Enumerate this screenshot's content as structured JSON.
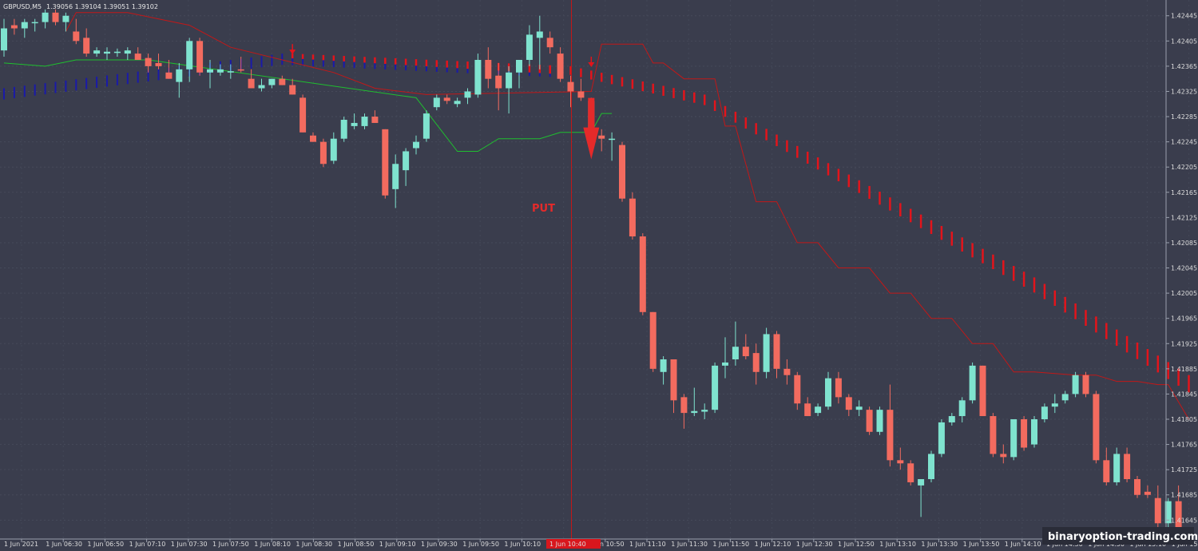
{
  "header": {
    "symbol": "GBPUSD,M5",
    "quotes": "1.39056 1.39104 1.39051 1.39102"
  },
  "signal": {
    "label": "PUT",
    "time_label": "1 Jun 10:40"
  },
  "watermark": "binaryoption-trading.com",
  "colors": {
    "background": "#3a3d4d",
    "bull": "#7fe3cf",
    "bear": "#f36b5f",
    "trail_green": "#1fbf2f",
    "trail_red": "#c21818",
    "dots_blue": "#1a1aa8",
    "dots_red": "#e3141b",
    "signal_line": "#c21818",
    "axis": "#9aa0ad"
  },
  "chart_data": {
    "type": "candlestick",
    "symbol": "GBPUSD",
    "timeframe": "M5",
    "ylim": [
      1.41615,
      1.4247
    ],
    "y_ticks": [
      "1.42445",
      "1.42405",
      "1.42365",
      "1.42325",
      "1.42285",
      "1.42245",
      "1.42205",
      "1.42165",
      "1.42125",
      "1.42085",
      "1.42045",
      "1.42005",
      "1.41965",
      "1.41925",
      "1.41885",
      "1.41845",
      "1.41805",
      "1.41765",
      "1.41725",
      "1.41685",
      "1.41645"
    ],
    "x_ticks": [
      "1 Jun 2021",
      "1 Jun 06:30",
      "1 Jun 06:50",
      "1 Jun 07:10",
      "1 Jun 07:30",
      "1 Jun 07:50",
      "1 Jun 08:10",
      "1 Jun 08:30",
      "1 Jun 08:50",
      "1 Jun 09:10",
      "1 Jun 09:30",
      "1 Jun 09:50",
      "1 Jun 10:10",
      "1 Jun 10:30",
      "1 Jun 10:50",
      "1 Jun 11:10",
      "1 Jun 11:30",
      "1 Jun 11:50",
      "1 Jun 12:10",
      "1 Jun 12:30",
      "1 Jun 12:50",
      "1 Jun 13:10",
      "1 Jun 13:30",
      "1 Jun 13:50",
      "1 Jun 14:10",
      "1 Jun 14:30",
      "1 Jun 14:50",
      "1 Jun 15:10",
      "1 Jun 15:30"
    ],
    "signal_candle_index": 55,
    "candles": [
      [
        1.4239,
        1.4244,
        1.4238,
        1.42425
      ],
      [
        1.4243,
        1.4244,
        1.42415,
        1.42425
      ],
      [
        1.42425,
        1.4244,
        1.4241,
        1.42435
      ],
      [
        1.42435,
        1.4244,
        1.4242,
        1.42435
      ],
      [
        1.42435,
        1.42455,
        1.42425,
        1.4245
      ],
      [
        1.4245,
        1.42455,
        1.4243,
        1.42435
      ],
      [
        1.42435,
        1.4245,
        1.4242,
        1.42445
      ],
      [
        1.4242,
        1.4244,
        1.424,
        1.42405
      ],
      [
        1.4241,
        1.42425,
        1.4238,
        1.42385
      ],
      [
        1.42385,
        1.42395,
        1.4238,
        1.4239
      ],
      [
        1.42385,
        1.42395,
        1.42375,
        1.42388
      ],
      [
        1.42386,
        1.42393,
        1.4238,
        1.42388
      ],
      [
        1.42385,
        1.42395,
        1.42375,
        1.4239
      ],
      [
        1.42385,
        1.42395,
        1.42375,
        1.42375
      ],
      [
        1.42378,
        1.42385,
        1.42355,
        1.42365
      ],
      [
        1.4237,
        1.42385,
        1.4236,
        1.42365
      ],
      [
        1.42355,
        1.42375,
        1.42345,
        1.42345
      ],
      [
        1.4234,
        1.4237,
        1.42315,
        1.4236
      ],
      [
        1.4236,
        1.4241,
        1.4234,
        1.42405
      ],
      [
        1.42405,
        1.4241,
        1.4235,
        1.42355
      ],
      [
        1.42355,
        1.42375,
        1.4233,
        1.4236
      ],
      [
        1.42355,
        1.42368,
        1.4235,
        1.4236
      ],
      [
        1.42355,
        1.42368,
        1.42345,
        1.42357
      ],
      [
        1.4236,
        1.4238,
        1.42355,
        1.42358
      ],
      [
        1.42345,
        1.4236,
        1.4233,
        1.4233
      ],
      [
        1.4233,
        1.42345,
        1.42325,
        1.42335
      ],
      [
        1.42335,
        1.42345,
        1.4233,
        1.42345
      ],
      [
        1.42345,
        1.4235,
        1.42335,
        1.42335
      ],
      [
        1.42335,
        1.42345,
        1.4232,
        1.4232
      ],
      [
        1.42315,
        1.4232,
        1.4226,
        1.4226
      ],
      [
        1.42255,
        1.4226,
        1.42245,
        1.42245
      ],
      [
        1.42245,
        1.4225,
        1.42205,
        1.4221
      ],
      [
        1.42215,
        1.4226,
        1.4221,
        1.4225
      ],
      [
        1.4225,
        1.42285,
        1.42245,
        1.4228
      ],
      [
        1.4227,
        1.4229,
        1.42265,
        1.42275
      ],
      [
        1.4227,
        1.4229,
        1.42265,
        1.42285
      ],
      [
        1.42285,
        1.42295,
        1.42275,
        1.42275
      ],
      [
        1.42265,
        1.42265,
        1.42155,
        1.4216
      ],
      [
        1.4217,
        1.42225,
        1.4214,
        1.4221
      ],
      [
        1.422,
        1.42235,
        1.42175,
        1.4223
      ],
      [
        1.42235,
        1.42255,
        1.42225,
        1.42245
      ],
      [
        1.4225,
        1.42295,
        1.42245,
        1.4229
      ],
      [
        1.423,
        1.4232,
        1.42295,
        1.42315
      ],
      [
        1.42315,
        1.4232,
        1.42305,
        1.4231
      ],
      [
        1.42305,
        1.42315,
        1.423,
        1.4231
      ],
      [
        1.42315,
        1.4233,
        1.42305,
        1.42325
      ],
      [
        1.4232,
        1.42385,
        1.42315,
        1.42375
      ],
      [
        1.42375,
        1.42395,
        1.4233,
        1.42345
      ],
      [
        1.4235,
        1.4237,
        1.42295,
        1.4233
      ],
      [
        1.4233,
        1.42365,
        1.4229,
        1.42355
      ],
      [
        1.42355,
        1.42375,
        1.4233,
        1.42375
      ],
      [
        1.42375,
        1.4243,
        1.42365,
        1.42415
      ],
      [
        1.4241,
        1.42445,
        1.4236,
        1.4242
      ],
      [
        1.4241,
        1.4242,
        1.42385,
        1.42395
      ],
      [
        1.42385,
        1.42395,
        1.4234,
        1.42345
      ],
      [
        1.4234,
        1.4235,
        1.423,
        1.42325
      ],
      [
        1.42325,
        1.42345,
        1.4231,
        1.42315
      ],
      [
        1.4231,
        1.42315,
        1.4225,
        1.42255
      ],
      [
        1.42255,
        1.42265,
        1.4223,
        1.4225
      ],
      [
        1.4225,
        1.4226,
        1.42215,
        1.4225
      ],
      [
        1.4224,
        1.42245,
        1.4215,
        1.42155
      ],
      [
        1.42155,
        1.42165,
        1.4209,
        1.42095
      ],
      [
        1.42095,
        1.421,
        1.4197,
        1.41975
      ],
      [
        1.41975,
        1.41975,
        1.4188,
        1.41885
      ],
      [
        1.4188,
        1.41905,
        1.4186,
        1.419
      ],
      [
        1.419,
        1.419,
        1.41815,
        1.41835
      ],
      [
        1.4184,
        1.41845,
        1.4179,
        1.41815
      ],
      [
        1.41815,
        1.41855,
        1.4181,
        1.41818
      ],
      [
        1.41817,
        1.4183,
        1.41805,
        1.4182
      ],
      [
        1.4182,
        1.41895,
        1.41815,
        1.4189
      ],
      [
        1.4189,
        1.41935,
        1.4187,
        1.41895
      ],
      [
        1.419,
        1.4196,
        1.4189,
        1.4192
      ],
      [
        1.4192,
        1.4194,
        1.419,
        1.41905
      ],
      [
        1.4191,
        1.41925,
        1.4186,
        1.4188
      ],
      [
        1.4188,
        1.4195,
        1.4187,
        1.4194
      ],
      [
        1.4194,
        1.41945,
        1.4187,
        1.41885
      ],
      [
        1.41885,
        1.419,
        1.4186,
        1.41875
      ],
      [
        1.41875,
        1.4188,
        1.4182,
        1.4183
      ],
      [
        1.4183,
        1.4184,
        1.4181,
        1.4181
      ],
      [
        1.41815,
        1.4183,
        1.4181,
        1.41825
      ],
      [
        1.41825,
        1.4188,
        1.4182,
        1.4187
      ],
      [
        1.4187,
        1.4188,
        1.4183,
        1.4184
      ],
      [
        1.4184,
        1.41845,
        1.4181,
        1.4182
      ],
      [
        1.4182,
        1.41835,
        1.4181,
        1.41825
      ],
      [
        1.4182,
        1.41825,
        1.4178,
        1.41785
      ],
      [
        1.41785,
        1.41825,
        1.4178,
        1.4182
      ],
      [
        1.4182,
        1.4186,
        1.4173,
        1.4174
      ],
      [
        1.4174,
        1.4176,
        1.41725,
        1.41735
      ],
      [
        1.41735,
        1.4174,
        1.417,
        1.41705
      ],
      [
        1.417,
        1.41705,
        1.4165,
        1.4171
      ],
      [
        1.4171,
        1.41755,
        1.41705,
        1.4175
      ],
      [
        1.4175,
        1.41805,
        1.41745,
        1.418
      ],
      [
        1.418,
        1.41815,
        1.41795,
        1.4181
      ],
      [
        1.4181,
        1.4184,
        1.418,
        1.41835
      ],
      [
        1.41835,
        1.41895,
        1.4183,
        1.4189
      ],
      [
        1.4189,
        1.4189,
        1.4181,
        1.4181
      ],
      [
        1.4181,
        1.41815,
        1.41745,
        1.4175
      ],
      [
        1.4175,
        1.41765,
        1.41735,
        1.41745
      ],
      [
        1.41745,
        1.41805,
        1.4174,
        1.41805
      ],
      [
        1.41805,
        1.4181,
        1.41755,
        1.4176
      ],
      [
        1.41765,
        1.4181,
        1.4176,
        1.41805
      ],
      [
        1.41805,
        1.4183,
        1.418,
        1.41825
      ],
      [
        1.41825,
        1.41845,
        1.41815,
        1.4183
      ],
      [
        1.41835,
        1.4185,
        1.4183,
        1.41845
      ],
      [
        1.41845,
        1.4188,
        1.4184,
        1.41875
      ],
      [
        1.41875,
        1.4188,
        1.4184,
        1.41845
      ],
      [
        1.41845,
        1.4185,
        1.41735,
        1.4174
      ],
      [
        1.4174,
        1.4176,
        1.417,
        1.41705
      ],
      [
        1.41705,
        1.4176,
        1.417,
        1.4175
      ],
      [
        1.4175,
        1.4176,
        1.41705,
        1.4171
      ],
      [
        1.4171,
        1.41715,
        1.4168,
        1.41685
      ],
      [
        1.4169,
        1.417,
        1.4168,
        1.41685
      ],
      [
        1.4168,
        1.417,
        1.4163,
        1.4164
      ],
      [
        1.4164,
        1.4168,
        1.4163,
        1.41675
      ],
      [
        1.41675,
        1.417,
        1.41625,
        1.4163
      ]
    ],
    "trailing_stop_green": [
      [
        0,
        1.4237
      ],
      [
        4,
        1.42365
      ],
      [
        7,
        1.42375
      ],
      [
        14,
        1.42375
      ],
      [
        40,
        1.42315
      ],
      [
        44,
        1.4223
      ],
      [
        46,
        1.4223
      ],
      [
        48,
        1.4225
      ],
      [
        52,
        1.4225
      ],
      [
        54,
        1.4226
      ],
      [
        57,
        1.4226
      ],
      [
        58,
        1.4229
      ],
      [
        59,
        1.4229
      ]
    ],
    "trailing_stop_red": [
      [
        6,
        1.4242
      ],
      [
        7,
        1.4245
      ],
      [
        12,
        1.4245
      ],
      [
        18,
        1.4243
      ],
      [
        22,
        1.42395
      ],
      [
        32,
        1.42355
      ],
      [
        36,
        1.4233
      ],
      [
        41,
        1.4232
      ],
      [
        57,
        1.42325
      ],
      [
        58,
        1.424
      ],
      [
        62,
        1.424
      ],
      [
        63,
        1.4237
      ],
      [
        64,
        1.4237
      ],
      [
        66,
        1.42345
      ],
      [
        69,
        1.42345
      ],
      [
        70,
        1.4227
      ],
      [
        71,
        1.4227
      ],
      [
        73,
        1.4215
      ],
      [
        75,
        1.4215
      ],
      [
        77,
        1.42085
      ],
      [
        79,
        1.42085
      ],
      [
        81,
        1.42045
      ],
      [
        84,
        1.42045
      ],
      [
        86,
        1.42005
      ],
      [
        88,
        1.42005
      ],
      [
        90,
        1.41965
      ],
      [
        92,
        1.41965
      ],
      [
        94,
        1.41925
      ],
      [
        96,
        1.41925
      ],
      [
        98,
        1.4188
      ],
      [
        100,
        1.4188
      ],
      [
        104,
        1.41875
      ],
      [
        106,
        1.41875
      ],
      [
        108,
        1.41865
      ],
      [
        110,
        1.41865
      ],
      [
        112,
        1.4186
      ],
      [
        113,
        1.4186
      ],
      [
        115,
        1.41805
      ]
    ],
    "dots_blue": {
      "start_index": 0,
      "end_index": 54,
      "start_value": 1.4233,
      "end_value": 1.42365,
      "peak_value": 1.42385
    },
    "dots_red": {
      "start_index": 28,
      "end_index": 115,
      "values_at": [
        [
          28,
          1.42385
        ],
        [
          55,
          1.42365
        ],
        [
          68,
          1.4232
        ],
        [
          100,
          1.4203
        ],
        [
          115,
          1.41875
        ]
      ]
    },
    "markers": [
      {
        "type": "arrow-down",
        "index": 28,
        "value": 1.4239
      },
      {
        "type": "arrow-down",
        "index": 57,
        "value": 1.4237
      },
      {
        "type": "signal-arrow-down",
        "index": 57,
        "value": 1.42245
      }
    ]
  }
}
